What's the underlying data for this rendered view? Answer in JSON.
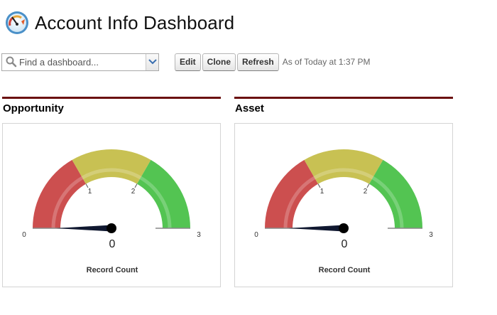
{
  "header": {
    "title": "Account Info Dashboard",
    "icon": "dashboard-gauge-icon"
  },
  "toolbar": {
    "search_placeholder": "Find a dashboard...",
    "edit_label": "Edit",
    "clone_label": "Clone",
    "refresh_label": "Refresh",
    "as_of": "As of Today at 1:37 PM"
  },
  "colors": {
    "header_bar": "#6b1111",
    "gauge_red": "#cc4f4f",
    "gauge_yellow": "#c8c153",
    "gauge_green": "#53c452",
    "needle": "#101830"
  },
  "panels": [
    {
      "title": "Opportunity",
      "value": "0",
      "caption": "Record Count"
    },
    {
      "title": "Asset",
      "value": "0",
      "caption": "Record Count"
    }
  ],
  "chart_data": [
    {
      "type": "gauge",
      "title": "Opportunity",
      "value": 0,
      "min": 0,
      "max": 3,
      "ticks": [
        "0",
        "1",
        "2",
        "3"
      ],
      "bands": [
        {
          "from": 0,
          "to": 1,
          "color": "red"
        },
        {
          "from": 1,
          "to": 2,
          "color": "yellow"
        },
        {
          "from": 2,
          "to": 3,
          "color": "green"
        }
      ],
      "caption": "Record Count"
    },
    {
      "type": "gauge",
      "title": "Asset",
      "value": 0,
      "min": 0,
      "max": 3,
      "ticks": [
        "0",
        "1",
        "2",
        "3"
      ],
      "bands": [
        {
          "from": 0,
          "to": 1,
          "color": "red"
        },
        {
          "from": 1,
          "to": 2,
          "color": "yellow"
        },
        {
          "from": 2,
          "to": 3,
          "color": "green"
        }
      ],
      "caption": "Record Count"
    }
  ]
}
